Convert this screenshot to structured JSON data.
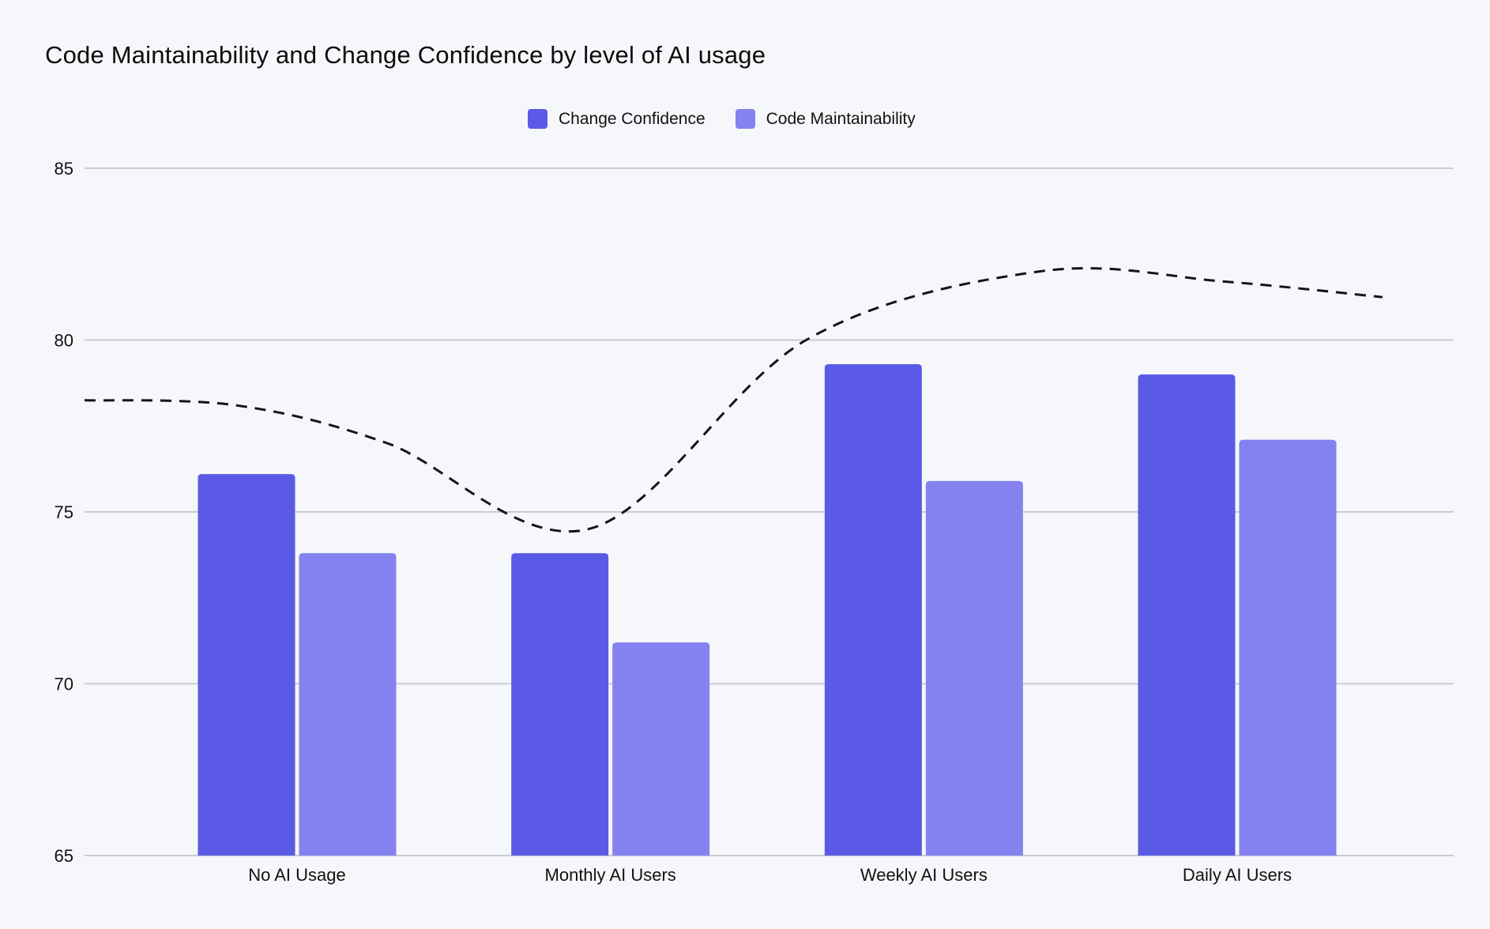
{
  "title": "Code Maintainability and Change Confidence by level of AI usage",
  "colors": {
    "background": "#F6F7FA",
    "bar_dark": "#5B5AE6",
    "bar_light": "#8482EF",
    "gridline": "#C9CCD3",
    "trend": "#141414",
    "text": "#121212"
  },
  "legend": [
    {
      "label": "Change Confidence"
    },
    {
      "label": "Code Maintainability"
    }
  ],
  "chart_data": {
    "type": "bar",
    "title": "Code Maintainability and Change Confidence by level of AI usage",
    "categories": [
      "No AI Usage",
      "Monthly AI Users",
      "Weekly AI Users",
      "Daily AI Users"
    ],
    "series": [
      {
        "name": "Change Confidence",
        "values": [
          76.1,
          73.8,
          79.3,
          79.0
        ]
      },
      {
        "name": "Code Maintainability",
        "values": [
          73.8,
          71.2,
          75.9,
          77.1
        ]
      }
    ],
    "xlabel": "",
    "ylabel": "",
    "y_axis": {
      "min": 65,
      "max": 85,
      "ticks": [
        65,
        70,
        75,
        80,
        85
      ]
    },
    "grid": true,
    "legend_position": "top",
    "trend_line": {
      "style": "dashed",
      "points": [
        {
          "x": 0.0,
          "value": 78.25
        },
        {
          "x": 0.111,
          "value": 78.1
        },
        {
          "x": 0.221,
          "value": 77.0
        },
        {
          "x": 0.368,
          "value": 74.5
        },
        {
          "x": 0.527,
          "value": 80.0
        },
        {
          "x": 0.698,
          "value": 82.0
        },
        {
          "x": 0.833,
          "value": 81.7
        },
        {
          "x": 0.948,
          "value": 81.25
        }
      ]
    }
  }
}
